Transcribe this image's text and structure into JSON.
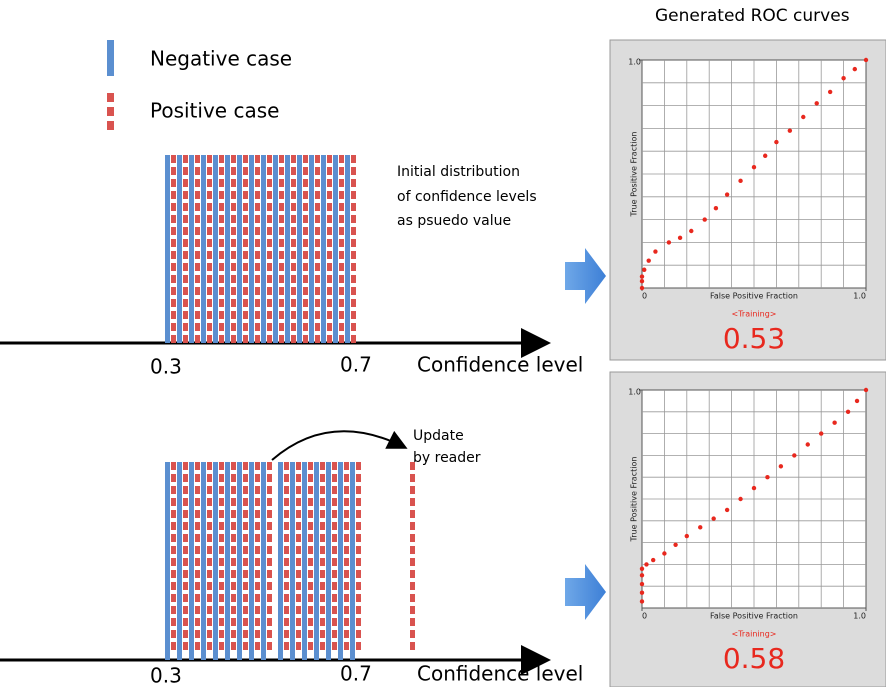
{
  "legend": {
    "negative": "Negative case",
    "positive": "Positive case"
  },
  "top_diagram": {
    "note": [
      "Initial distribution",
      "of confidence levels",
      "as psuedo value"
    ],
    "ticks": [
      "0.3",
      "0.7"
    ],
    "axis_label": "Confidence level"
  },
  "bottom_diagram": {
    "note": [
      "Update",
      "by reader"
    ],
    "ticks": [
      "0.3",
      "0.7"
    ],
    "axis_label": "Confidence level"
  },
  "roc_title": "Generated ROC curves",
  "roc_panels": [
    {
      "y_label": "True Positive Fraction",
      "x_label": "False Positive Fraction",
      "xlim": [
        0,
        1
      ],
      "ylim": [
        0,
        1
      ],
      "xticks": [
        0,
        {
          "value": 1,
          "label": "1.0"
        }
      ],
      "yticks": [
        {
          "value": 1,
          "label": "1.0"
        }
      ],
      "mode": "<Training>",
      "score": "0.53",
      "x": [
        0,
        0,
        0,
        0.01,
        0.03,
        0.06,
        0.12,
        0.17,
        0.22,
        0.28,
        0.33,
        0.38,
        0.44,
        0.5,
        0.55,
        0.6,
        0.66,
        0.72,
        0.78,
        0.84,
        0.9,
        0.95,
        1
      ],
      "y": [
        0,
        0.03,
        0.05,
        0.08,
        0.12,
        0.16,
        0.2,
        0.22,
        0.25,
        0.3,
        0.35,
        0.41,
        0.47,
        0.53,
        0.58,
        0.64,
        0.69,
        0.75,
        0.81,
        0.86,
        0.92,
        0.96,
        1
      ]
    },
    {
      "y_label": "True Positive Fraction",
      "x_label": "False Positive Fraction",
      "xlim": [
        0,
        1
      ],
      "ylim": [
        0,
        1
      ],
      "xticks": [
        0,
        {
          "value": 1,
          "label": "1.0"
        }
      ],
      "yticks": [
        {
          "value": 1,
          "label": "1.0"
        }
      ],
      "mode": "<Training>",
      "score": "0.58",
      "x": [
        0,
        0,
        0,
        0,
        0,
        0.02,
        0.05,
        0.1,
        0.15,
        0.2,
        0.26,
        0.32,
        0.38,
        0.44,
        0.5,
        0.56,
        0.62,
        0.68,
        0.74,
        0.8,
        0.86,
        0.92,
        0.96,
        1
      ],
      "y": [
        0.03,
        0.07,
        0.11,
        0.15,
        0.18,
        0.2,
        0.22,
        0.25,
        0.29,
        0.33,
        0.37,
        0.41,
        0.45,
        0.5,
        0.55,
        0.6,
        0.65,
        0.7,
        0.75,
        0.8,
        0.85,
        0.9,
        0.95,
        1
      ]
    }
  ]
}
